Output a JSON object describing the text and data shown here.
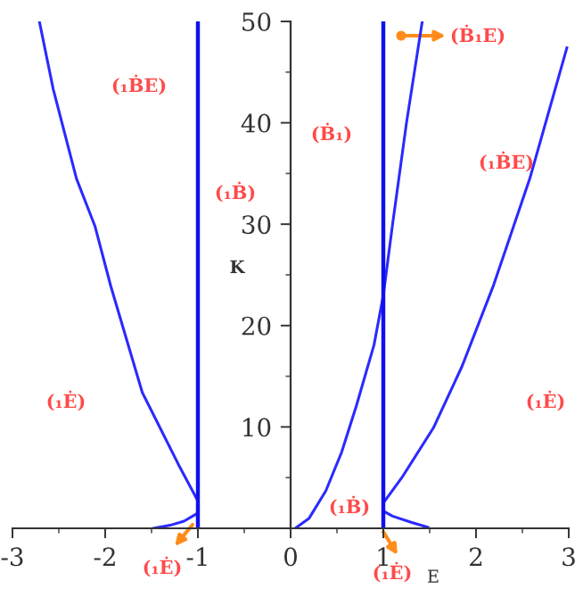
{
  "chart_data": {
    "type": "line",
    "xlabel": "E",
    "ylabel": "K",
    "xlim": [
      -3,
      3
    ],
    "ylim": [
      0,
      50
    ],
    "xticks": [
      -3,
      -2,
      -1,
      0,
      1,
      2,
      3
    ],
    "yticks": [
      10,
      20,
      30,
      40,
      50
    ],
    "grid": false,
    "marker": "none",
    "line_style": "solid",
    "series": [
      {
        "color": "#2a2aff",
        "x": [
          -2.71,
          -2.56,
          -2.31,
          -2.11,
          -1.94,
          -1.6,
          -1.21,
          -1.0
        ],
        "values": [
          50,
          43.3,
          34.5,
          29.8,
          23.9,
          13.4,
          6.3,
          2.7
        ]
      },
      {
        "color": "#2a2aff",
        "x": [
          -1.48,
          -1.3,
          -1.15,
          -1.0
        ],
        "values": [
          0,
          0.3,
          0.7,
          1.5
        ]
      },
      {
        "color": "#2a2aff",
        "x": [
          0.05,
          0.2,
          0.38,
          0.55,
          0.71,
          0.9,
          1.0,
          1.1,
          1.25,
          1.42
        ],
        "values": [
          0,
          1,
          3.7,
          7.5,
          12.1,
          18.1,
          23,
          30,
          40,
          50
        ]
      },
      {
        "color": "#2a2aff",
        "x": [
          1.0,
          1.2,
          1.54,
          1.85,
          2.19,
          2.58,
          2.98
        ],
        "values": [
          2.5,
          5,
          9.9,
          16,
          24,
          34.5,
          47.4
        ]
      },
      {
        "color": "#2a2aff",
        "x": [
          1.0,
          1.1,
          1.3,
          1.48
        ],
        "values": [
          1.7,
          1.2,
          0.6,
          0.1
        ]
      }
    ],
    "ref_lines": [
      {
        "axis": "x",
        "value": -1,
        "label": null,
        "color": "#1010ee"
      },
      {
        "axis": "x",
        "value": 1,
        "label": null,
        "color": "#1010ee"
      }
    ],
    "annotations": [
      "(₁ḂE)",
      "(₁Ḃ)",
      "(Ḃ₁)",
      "(Ḃ₁E)",
      "(₁ḂE)",
      "(₁Ė)",
      "(₁Ė)",
      "(₁Ḃ)",
      "(₁Ė)",
      "(₁Ė)"
    ]
  }
}
